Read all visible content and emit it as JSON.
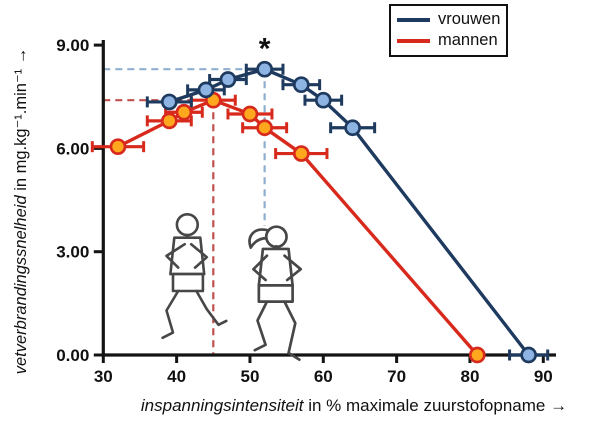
{
  "chart_data": {
    "type": "line",
    "title": "",
    "xlabel": "inspanningsintensiteit in % maximale zuurstofopname",
    "ylabel": "vetverbrandingssnelheid in mg.kg⁻¹.min⁻¹",
    "xlabel_italic": "inspanningsintensiteit",
    "xlabel_rest": " in % maximale zuurstofopname →",
    "ylabel_italic": "vetverbrandingssnelheid",
    "ylabel_rest": " in mg.kg⁻¹.min⁻¹ →",
    "xlim": [
      30,
      90
    ],
    "ylim": [
      0,
      9
    ],
    "grid": false,
    "legend_position": "top-right",
    "xticks": [
      {
        "value": 30,
        "label": "30"
      },
      {
        "value": 40,
        "label": "40"
      },
      {
        "value": 50,
        "label": "50"
      },
      {
        "value": 60,
        "label": "60"
      },
      {
        "value": 70,
        "label": "70"
      },
      {
        "value": 80,
        "label": "80"
      },
      {
        "value": 90,
        "label": "90"
      }
    ],
    "yticks": [
      {
        "value": 0,
        "label": "0.00"
      },
      {
        "value": 3,
        "label": "3.00"
      },
      {
        "value": 6,
        "label": "6.00"
      },
      {
        "value": 9,
        "label": "9.00"
      }
    ],
    "series": [
      {
        "name": "vrouwen",
        "line_color": "#1e3a5f",
        "marker_fill": "#8db4e2",
        "marker_edge": "#1e3a5f",
        "points": [
          {
            "x": 39,
            "y": 7.35,
            "xerr": 3
          },
          {
            "x": 44,
            "y": 7.7,
            "xerr": 2.5
          },
          {
            "x": 47,
            "y": 8.0,
            "xerr": 2.5
          },
          {
            "x": 52,
            "y": 8.3,
            "xerr": 2.5
          },
          {
            "x": 57,
            "y": 7.85,
            "xerr": 2.5
          },
          {
            "x": 60,
            "y": 7.4,
            "xerr": 2.5
          },
          {
            "x": 64,
            "y": 6.6,
            "xerr": 3
          },
          {
            "x": 88,
            "y": 0,
            "xerr": 2.6
          }
        ]
      },
      {
        "name": "mannen",
        "line_color": "#d8291d",
        "marker_fill": "#ffa81e",
        "marker_edge": "#d8291d",
        "points": [
          {
            "x": 32,
            "y": 6.05,
            "xerr": 3.5
          },
          {
            "x": 39,
            "y": 6.8,
            "xerr": 3
          },
          {
            "x": 41,
            "y": 7.05,
            "xerr": 2.5
          },
          {
            "x": 45,
            "y": 7.4,
            "xerr": 3
          },
          {
            "x": 50,
            "y": 7.0,
            "xerr": 3
          },
          {
            "x": 52,
            "y": 6.6,
            "xerr": 3
          },
          {
            "x": 57,
            "y": 5.85,
            "xerr": 3.5
          },
          {
            "x": 81,
            "y": 0,
            "xerr": 0
          }
        ]
      }
    ],
    "annotations": {
      "significance_marker": {
        "text": "*",
        "x": 52,
        "y": 8.85
      },
      "reference_lines": [
        {
          "series": "vrouwen",
          "orientation": "horizontal",
          "y": 8.3,
          "x_from": 30,
          "x_to": 52,
          "color": "#8fafd0"
        },
        {
          "series": "vrouwen",
          "orientation": "vertical",
          "x": 52,
          "y_from": 8.3,
          "y_to": 3.75,
          "color": "#8fafd0"
        },
        {
          "series": "mannen",
          "orientation": "horizontal",
          "y": 7.4,
          "x_from": 30,
          "x_to": 45,
          "color": "#c0504d"
        },
        {
          "series": "mannen",
          "orientation": "vertical",
          "x": 45,
          "y_from": 7.4,
          "y_to": 0,
          "color": "#c0504d"
        }
      ]
    },
    "axis_color": "#141414"
  },
  "legend": {
    "items": [
      {
        "label": "vrouwen",
        "color": "#1e3a5f"
      },
      {
        "label": "mannen",
        "color": "#d8291d"
      }
    ]
  }
}
